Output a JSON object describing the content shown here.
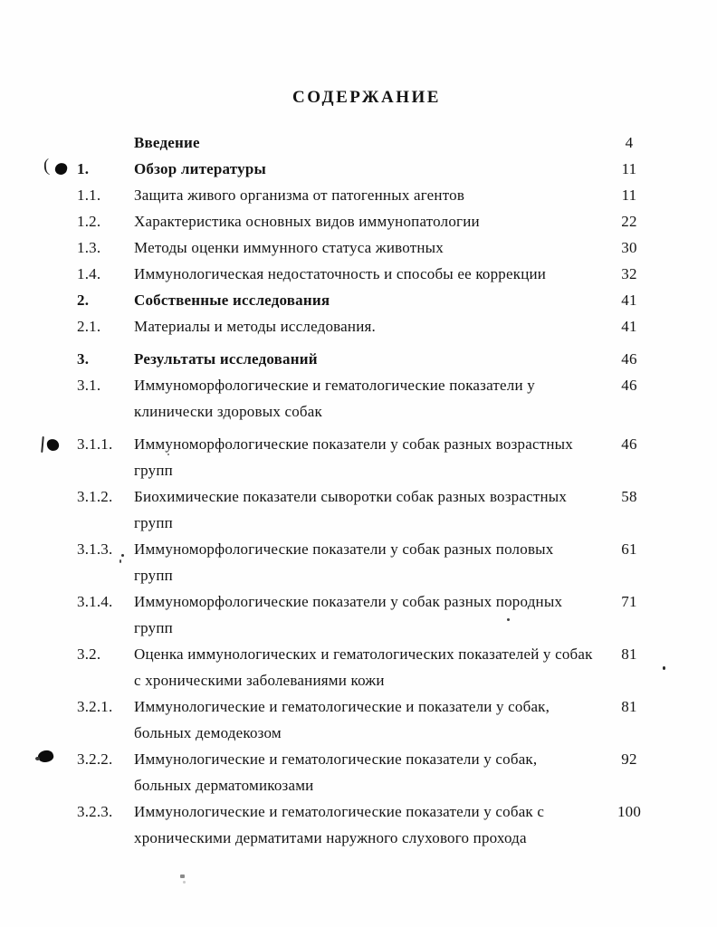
{
  "page": {
    "title": "СОДЕРЖАНИЕ"
  },
  "toc": {
    "rows": [
      {
        "num": "",
        "lines": [
          "Введение"
        ],
        "page": "4",
        "bold": true
      },
      {
        "num": "1.",
        "lines": [
          "Обзор литературы"
        ],
        "page": "11",
        "bold": true
      },
      {
        "num": "1.1.",
        "lines": [
          "Защита живого организма от патогенных агентов"
        ],
        "page": "11"
      },
      {
        "num": "1.2.",
        "lines": [
          "Характеристика основных видов иммунопатологии"
        ],
        "page": "22"
      },
      {
        "num": "1.3.",
        "lines": [
          "Методы оценки иммунного статуса животных"
        ],
        "page": "30"
      },
      {
        "num": "1.4.",
        "lines": [
          "Иммунологическая недостаточность и способы ее коррекции"
        ],
        "page": "32"
      },
      {
        "num": "2.",
        "lines": [
          "Собственные исследования"
        ],
        "page": "41",
        "bold": true
      },
      {
        "num": "2.1.",
        "lines": [
          "Материалы и методы исследования."
        ],
        "page": "41"
      },
      {
        "num": "3.",
        "lines": [
          "Результаты исследований"
        ],
        "page": "46",
        "bold": true,
        "gap_before": true
      },
      {
        "num": "3.1.",
        "lines": [
          "Иммуноморфологические и гематологические показатели у",
          "клинически здоровых собак"
        ],
        "page": "46"
      },
      {
        "num": "3.1.1.",
        "lines": [
          "Иммуноморфологические показатели у собак разных возрастных",
          "групп"
        ],
        "page": "46",
        "gap_before": true
      },
      {
        "num": "3.1.2.",
        "lines": [
          "Биохимические показатели сыворотки собак разных возрастных",
          "групп"
        ],
        "page": "58"
      },
      {
        "num": "3.1.3.",
        "lines": [
          "Иммуноморфологические показатели у собак разных половых",
          "групп"
        ],
        "page": "61"
      },
      {
        "num": "3.1.4.",
        "lines": [
          "Иммуноморфологические показатели у собак разных породных",
          "групп"
        ],
        "page": "71"
      },
      {
        "num": "3.2.",
        "lines": [
          "Оценка иммунологических и гематологических показателей у собак",
          "с хроническими заболеваниями кожи"
        ],
        "page": "81"
      },
      {
        "num": "3.2.1.",
        "lines": [
          "Иммунологические и гематологические и показатели у собак,",
          "больных демодекозом"
        ],
        "page": "81"
      },
      {
        "num": "3.2.2.",
        "lines": [
          "Иммунологические и гематологические показатели у собак,",
          "больных дерматомикозами"
        ],
        "page": "92"
      },
      {
        "num": "3.2.3.",
        "lines": [
          "Иммунологические и гематологические показатели у собак с",
          "хроническими дерматитами наружного слухового прохода"
        ],
        "page": "100"
      }
    ]
  },
  "artifacts": {
    "paren_mark": "("
  }
}
